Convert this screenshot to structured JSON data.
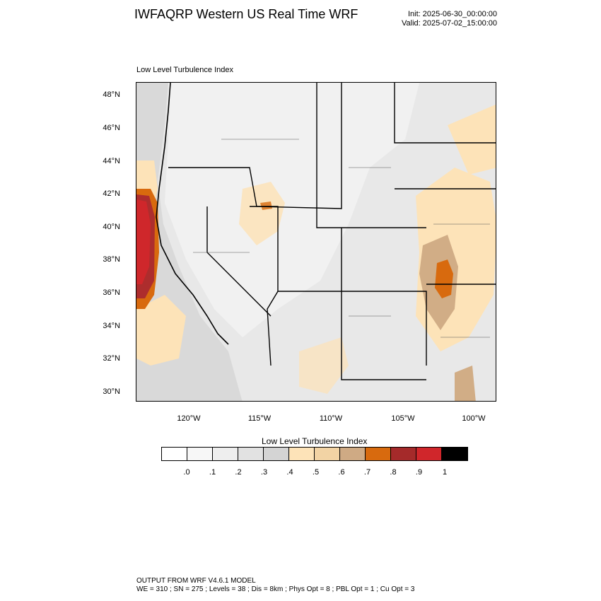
{
  "header": {
    "title": "IWFAQRP Western US Real Time WRF",
    "init": "Init: 2025-06-30_00:00:00",
    "valid": "Valid: 2025-07-02_15:00:00"
  },
  "panel_label": "Low Level Turbulence Index",
  "map": {
    "lat_labels": [
      "48°N",
      "46°N",
      "44°N",
      "42°N",
      "40°N",
      "38°N",
      "36°N",
      "34°N",
      "32°N",
      "30°N"
    ],
    "lon_labels": [
      "120°W",
      "115°W",
      "110°W",
      "105°W",
      "100°W"
    ],
    "colors": {
      "background_gray": "#e6e6e6",
      "light": "#f4f4f4",
      "pale_orange": "#fde3b8",
      "tan": "#d1ad86",
      "orange": "#d86a0e",
      "dark_red": "#ad2d2d",
      "red": "#cf272b"
    }
  },
  "colorbar": {
    "title": "Low Level Turbulence Index",
    "labels": [
      ".0",
      ".1",
      ".2",
      ".3",
      ".4",
      ".5",
      ".6",
      ".7",
      ".8",
      ".9",
      "1"
    ],
    "colors": [
      "#ffffff",
      "#f7f7f7",
      "#eeeeee",
      "#e2e2e2",
      "#d4d4d4",
      "#fde3b8",
      "#f2d3a4",
      "#cfaa84",
      "#d86a0e",
      "#a52a2a",
      "#d0262b",
      "#000000"
    ]
  },
  "footer": {
    "line1": "OUTPUT FROM WRF V4.6.1 MODEL",
    "line2": "WE = 310 ; SN = 275 ; Levels = 38 ; Dis = 8km ; Phys Opt = 8 ; PBL Opt = 1 ; Cu Opt = 3"
  }
}
